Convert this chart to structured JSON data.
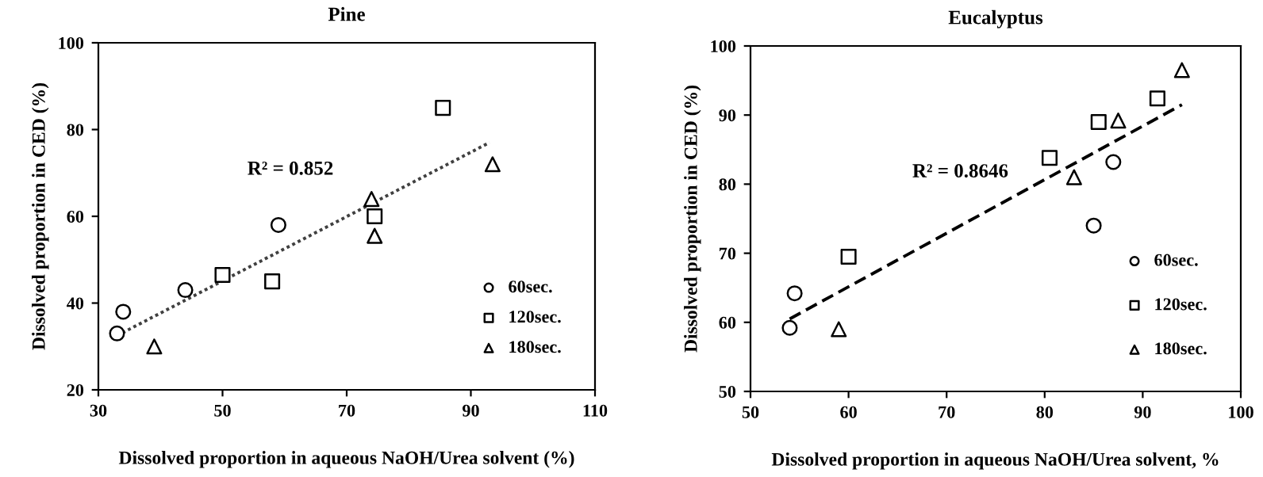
{
  "chart_data": [
    {
      "type": "scatter",
      "title": "Pine",
      "xlabel": "Dissolved proportion in aqueous NaOH/Urea solvent (%)",
      "ylabel": "Dissolved proportion in CED (%)",
      "xlim": [
        30,
        110
      ],
      "xticks": [
        30,
        50,
        70,
        90,
        110
      ],
      "ylim": [
        20,
        100
      ],
      "yticks": [
        20,
        40,
        60,
        80,
        100
      ],
      "grid": false,
      "legend": "bottom right",
      "annotations": [
        "R² = 0.852"
      ],
      "series": [
        {
          "name": "60sec.",
          "color": "#000000",
          "marker": "circle",
          "x": [
            33,
            34,
            44,
            59
          ],
          "values": [
            33,
            38,
            43,
            58
          ]
        },
        {
          "name": "120sec.",
          "color": "#000000",
          "marker": "square",
          "x": [
            50,
            58,
            74.5,
            85.5
          ],
          "values": [
            46.5,
            45,
            60,
            85
          ]
        },
        {
          "name": "180sec.",
          "color": "#000000",
          "marker": "triangle",
          "x": [
            39,
            74,
            74.5,
            93.5
          ],
          "values": [
            30,
            64,
            55.5,
            72
          ]
        },
        {
          "type": "line",
          "color": "#404040",
          "line_style": "dotted",
          "marker": "none",
          "x": [
            33,
            93
          ],
          "values": [
            32.5,
            77
          ]
        }
      ]
    },
    {
      "type": "scatter",
      "title": "Eucalyptus",
      "xlabel": "Dissolved proportion in aqueous NaOH/Urea solvent, %",
      "ylabel": "Dissolved proportion in CED (%)",
      "xlim": [
        50,
        100
      ],
      "xticks": [
        50,
        60,
        70,
        80,
        90,
        100
      ],
      "ylim": [
        50,
        100
      ],
      "yticks": [
        50,
        60,
        70,
        80,
        90,
        100
      ],
      "grid": false,
      "legend": "bottom right",
      "annotations": [
        "R² = 0.8646"
      ],
      "series": [
        {
          "name": "60sec.",
          "color": "#000000",
          "marker": "circle",
          "x": [
            54,
            54.5,
            85,
            87
          ],
          "values": [
            59.2,
            64.2,
            74,
            83.2
          ]
        },
        {
          "name": "120sec.",
          "color": "#000000",
          "marker": "square",
          "x": [
            60,
            80.5,
            85.5,
            91.5
          ],
          "values": [
            69.5,
            83.8,
            89,
            92.4
          ]
        },
        {
          "name": "180sec.",
          "color": "#000000",
          "marker": "triangle",
          "x": [
            59,
            83,
            87.5,
            94
          ],
          "values": [
            59,
            81,
            89.2,
            96.5
          ]
        },
        {
          "type": "line",
          "color": "#000000",
          "line_style": "dashed",
          "marker": "none",
          "x": [
            54,
            94
          ],
          "values": [
            60.5,
            91.5
          ]
        }
      ]
    }
  ]
}
